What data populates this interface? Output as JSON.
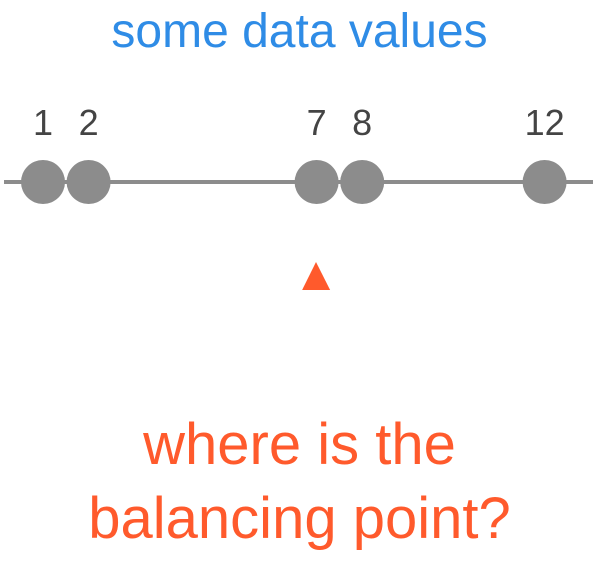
{
  "title": "some data values",
  "data_values": [
    1,
    2,
    7,
    8,
    12
  ],
  "value_labels": [
    "1",
    "2",
    "7",
    "8",
    "12"
  ],
  "question": {
    "line1": "where is the",
    "line2": "balancing point?"
  },
  "colors": {
    "title": "#2f8ce6",
    "dots": "#8c8c8c",
    "line": "#8c8c8c",
    "labels": "#444444",
    "fulcrum": "#ff5a2c",
    "question": "#ff5a2c"
  }
}
